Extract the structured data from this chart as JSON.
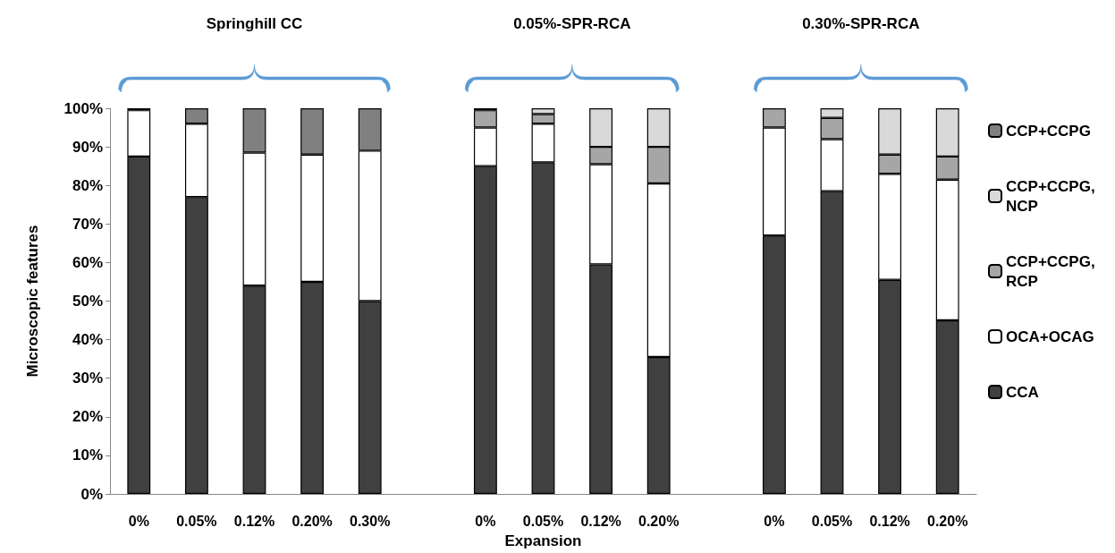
{
  "chart_data": {
    "type": "bar",
    "stacked": true,
    "xlabel": "Expansion",
    "ylabel": "Microscopic features",
    "categories": [
      "0%",
      "0.05%",
      "0.12%",
      "0.20%",
      "0.30%",
      null,
      "0%",
      "0.05%",
      "0.12%",
      "0.20%",
      null,
      "0%",
      "0.05%",
      "0.12%",
      "0.20%"
    ],
    "series": [
      {
        "name": "CCA",
        "color": "#404040",
        "values": [
          87.5,
          77,
          54,
          55,
          50,
          null,
          85,
          86,
          59.5,
          35.5,
          null,
          67,
          78.5,
          55.5,
          45
        ]
      },
      {
        "name": "OCA+OCAG",
        "color": "#ffffff",
        "values": [
          12,
          19,
          34.5,
          33,
          39,
          null,
          10,
          10,
          26,
          45,
          null,
          28,
          13.5,
          27.5,
          36.5
        ]
      },
      {
        "name": "CCP+CCPG, RCP",
        "color": "#a6a6a6",
        "values": [
          null,
          null,
          null,
          null,
          null,
          null,
          4.5,
          2.5,
          4.5,
          9.5,
          null,
          5,
          5.5,
          5,
          6
        ]
      },
      {
        "name": "CCP+CCPG, NCP",
        "color": "#d9d9d9",
        "values": [
          null,
          null,
          null,
          null,
          null,
          null,
          null,
          1.5,
          10,
          10,
          null,
          null,
          2.5,
          12,
          12.5
        ]
      },
      {
        "name": "CCP+CCPG",
        "color": "#808080",
        "values": [
          0.5,
          4,
          11.5,
          12,
          11,
          null,
          0.5,
          null,
          null,
          null,
          null,
          null,
          null,
          null,
          null
        ]
      }
    ],
    "ylim": [
      0,
      100
    ],
    "yticks": [
      {
        "value": 0,
        "label": "0%"
      },
      {
        "value": 10,
        "label": "10%"
      },
      {
        "value": 20,
        "label": "20%"
      },
      {
        "value": 30,
        "label": "30%"
      },
      {
        "value": 40,
        "label": "40%"
      },
      {
        "value": 50,
        "label": "50%"
      },
      {
        "value": 60,
        "label": "60%"
      },
      {
        "value": 70,
        "label": "70%"
      },
      {
        "value": 80,
        "label": "80%"
      },
      {
        "value": 90,
        "label": "90%"
      },
      {
        "value": 100,
        "label": "100%"
      }
    ],
    "grid": false,
    "legend": "right",
    "annotations": [
      "Springhill CC",
      "0.05%-SPR-RCA",
      "0.30%-SPR-RCA"
    ]
  }
}
